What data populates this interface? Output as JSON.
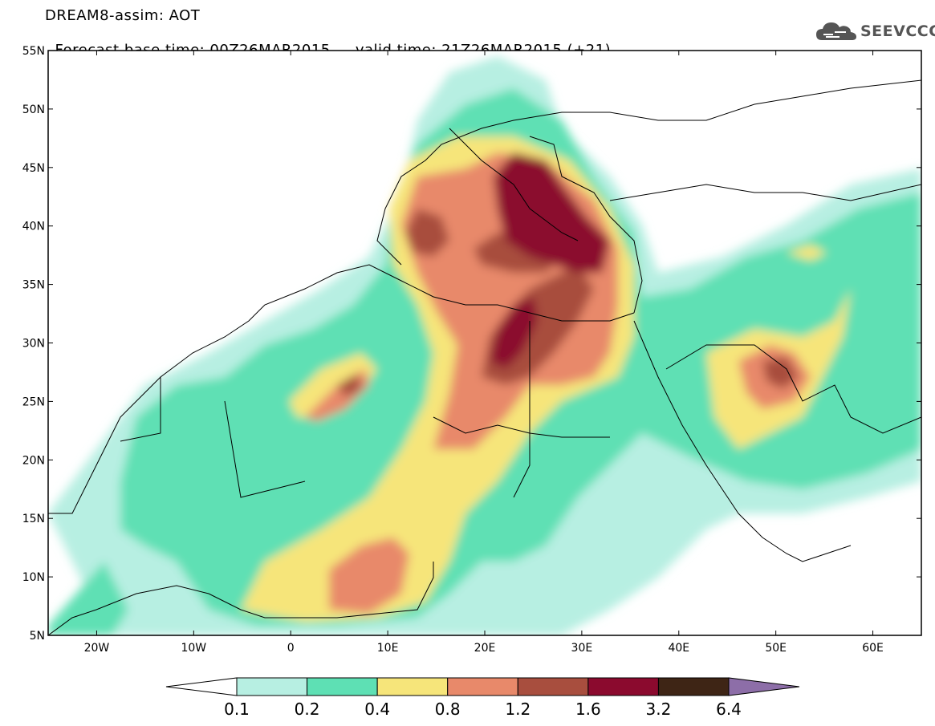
{
  "title": {
    "line1": "DREAM8-assim: AOT",
    "base_time": "Forecast base time: 00Z26MAR2015",
    "valid_time": "valid time: 21Z26MAR2015 (+21)"
  },
  "logo": {
    "text": "SEEVCCC",
    "icon": "cloud-icon"
  },
  "axes": {
    "lon_range": [
      -25,
      65
    ],
    "lat_range": [
      5,
      55
    ],
    "x_ticks": [
      {
        "value": -20,
        "label": "20W"
      },
      {
        "value": -10,
        "label": "10W"
      },
      {
        "value": 0,
        "label": "0"
      },
      {
        "value": 10,
        "label": "10E"
      },
      {
        "value": 20,
        "label": "20E"
      },
      {
        "value": 30,
        "label": "30E"
      },
      {
        "value": 40,
        "label": "40E"
      },
      {
        "value": 50,
        "label": "50E"
      },
      {
        "value": 60,
        "label": "60E"
      }
    ],
    "y_ticks": [
      {
        "value": 55,
        "label": "55N"
      },
      {
        "value": 50,
        "label": "50N"
      },
      {
        "value": 45,
        "label": "45N"
      },
      {
        "value": 40,
        "label": "40N"
      },
      {
        "value": 35,
        "label": "35N"
      },
      {
        "value": 30,
        "label": "30N"
      },
      {
        "value": 25,
        "label": "25N"
      },
      {
        "value": 20,
        "label": "20N"
      },
      {
        "value": 15,
        "label": "15N"
      },
      {
        "value": 10,
        "label": "10N"
      },
      {
        "value": 5,
        "label": "5N"
      }
    ]
  },
  "colorbar": {
    "levels": [
      "0.1",
      "0.2",
      "0.4",
      "0.8",
      "1.2",
      "1.6",
      "3.2",
      "6.4"
    ],
    "colors": [
      "#ffffff",
      "#b7efe2",
      "#5ee0b4",
      "#f6e57a",
      "#e8896a",
      "#a84e3e",
      "#8b0a2e",
      "#3e2515",
      "#8d6ea8"
    ]
  }
}
